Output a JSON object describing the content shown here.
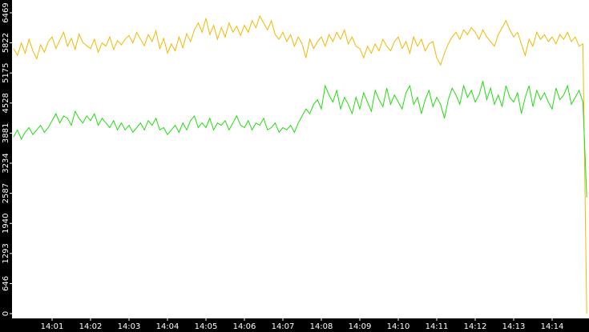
{
  "chart_data": {
    "type": "line",
    "categories": [
      null,
      null,
      null,
      null,
      null,
      null,
      null,
      null,
      null,
      null,
      "14:01",
      null,
      null,
      null,
      null,
      null,
      null,
      null,
      null,
      null,
      "14:02",
      null,
      null,
      null,
      null,
      null,
      null,
      null,
      null,
      null,
      "14:03",
      null,
      null,
      null,
      null,
      null,
      null,
      null,
      null,
      null,
      "14:04",
      null,
      null,
      null,
      null,
      null,
      null,
      null,
      null,
      null,
      "14:05",
      null,
      null,
      null,
      null,
      null,
      null,
      null,
      null,
      null,
      "14:06",
      null,
      null,
      null,
      null,
      null,
      null,
      null,
      null,
      null,
      "14:07",
      null,
      null,
      null,
      null,
      null,
      null,
      null,
      null,
      null,
      "14:08",
      null,
      null,
      null,
      null,
      null,
      null,
      null,
      null,
      null,
      "14:09",
      null,
      null,
      null,
      null,
      null,
      null,
      null,
      null,
      null,
      "14:10",
      null,
      null,
      null,
      null,
      null,
      null,
      null,
      null,
      null,
      "14:11",
      null,
      null,
      null,
      null,
      null,
      null,
      null,
      null,
      null,
      "14:12",
      null,
      null,
      null,
      null,
      null,
      null,
      null,
      null,
      null,
      "14:13",
      null,
      null,
      null,
      null,
      null,
      null,
      null,
      null,
      null,
      "14:14",
      null,
      null,
      null,
      null,
      null,
      null,
      null,
      null,
      null
    ],
    "series": [
      {
        "color": "#f2b900",
        "values": [
          5700,
          5550,
          5820,
          5600,
          5900,
          5650,
          5480,
          5780,
          5620,
          5850,
          5950,
          5700,
          5880,
          6050,
          5750,
          5920,
          5680,
          6010,
          5830,
          5760,
          5700,
          5900,
          5620,
          5820,
          5750,
          5950,
          5680,
          5870,
          5780,
          5900,
          5980,
          5820,
          6050,
          5900,
          5760,
          6000,
          5850,
          6080,
          5700,
          5920,
          5600,
          5800,
          5650,
          5950,
          5720,
          6020,
          5850,
          6100,
          6250,
          6050,
          6350,
          6000,
          6200,
          5900,
          6150,
          5950,
          6250,
          6050,
          6180,
          5980,
          6200,
          6050,
          6300,
          6150,
          6400,
          6250,
          6100,
          6300,
          6000,
          5900,
          6050,
          5850,
          6000,
          5750,
          5950,
          5800,
          5500,
          5900,
          5700,
          5850,
          5950,
          5750,
          6000,
          5850,
          6050,
          5900,
          6100,
          5800,
          5950,
          5750,
          5700,
          5500,
          5750,
          5600,
          5800,
          5650,
          5900,
          5750,
          5650,
          5850,
          5950,
          5700,
          5850,
          5600,
          5950,
          5750,
          5900,
          5650,
          5800,
          5850,
          5500,
          5350,
          5600,
          5800,
          5950,
          6050,
          5900,
          6100,
          6000,
          6150,
          6050,
          5900,
          6100,
          5950,
          5850,
          5750,
          6000,
          6150,
          6300,
          6100,
          5950,
          6050,
          5800,
          5550,
          5900,
          5750,
          6050,
          5900,
          6000,
          5850,
          5950,
          5800,
          6000,
          5900,
          6050,
          5850,
          5950,
          5750,
          5800,
          0
        ]
      },
      {
        "color": "#22dd11",
        "values": [
          3800,
          3950,
          3750,
          3900,
          4000,
          3850,
          3950,
          4050,
          3900,
          4000,
          4150,
          4300,
          4100,
          4250,
          4200,
          4050,
          4350,
          4200,
          4100,
          4250,
          4150,
          4300,
          4050,
          4200,
          4100,
          4000,
          4150,
          3950,
          4100,
          3950,
          4050,
          3900,
          4000,
          4100,
          3950,
          4150,
          4050,
          4200,
          3950,
          4000,
          3850,
          3950,
          4050,
          3900,
          4100,
          3950,
          4150,
          4250,
          4000,
          4100,
          4000,
          4200,
          3950,
          4100,
          4050,
          4150,
          3950,
          4100,
          4250,
          4050,
          4000,
          4150,
          3950,
          4100,
          4050,
          4200,
          3950,
          4000,
          4100,
          3900,
          4000,
          3950,
          4050,
          3900,
          4100,
          4250,
          4400,
          4300,
          4500,
          4600,
          4400,
          4900,
          4700,
          4550,
          4800,
          4400,
          4650,
          4500,
          4300,
          4650,
          4400,
          4750,
          4550,
          4350,
          4800,
          4600,
          4450,
          4850,
          4500,
          4700,
          4550,
          4400,
          4750,
          4900,
          4500,
          4650,
          4300,
          4600,
          4800,
          4450,
          4650,
          4500,
          4200,
          4600,
          4850,
          4700,
          4500,
          4900,
          4650,
          4800,
          4550,
          4700,
          5000,
          4600,
          4850,
          4500,
          4700,
          4450,
          4900,
          4650,
          4550,
          4750,
          4300,
          4650,
          4900,
          4450,
          4800,
          4600,
          4750,
          4550,
          4400,
          4850,
          4600,
          4700,
          4900,
          4500,
          4650,
          4800,
          4550,
          2500
        ]
      }
    ],
    "ylim": [
      -86,
      6744
    ],
    "yticks": [
      0,
      646,
      1293,
      1940,
      2587,
      3234,
      3881,
      4528,
      5175,
      5822,
      6469
    ]
  }
}
